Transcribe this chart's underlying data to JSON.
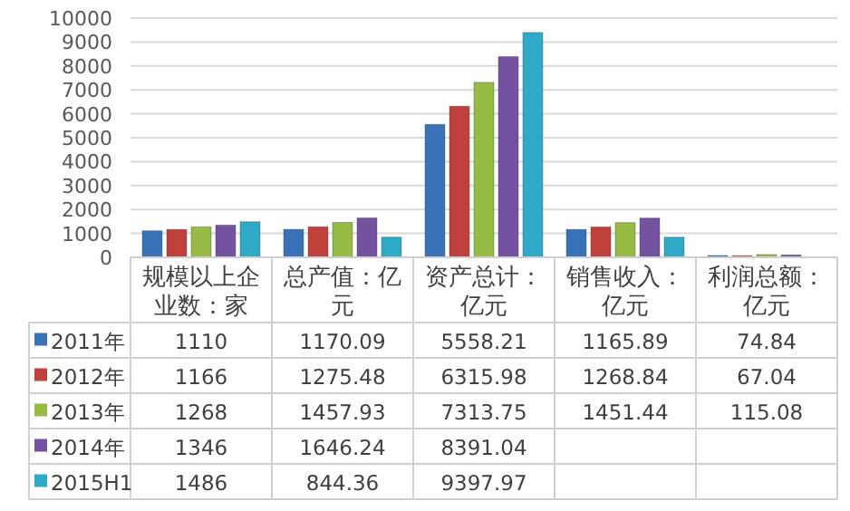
{
  "chart_data": {
    "type": "bar",
    "categories": [
      "规模以上企业数：家",
      "总产值：亿元",
      "资产总计：亿元",
      "销售收入：亿元",
      "利润总额：亿元"
    ],
    "ylim": [
      0,
      10000
    ],
    "yticks": [
      0,
      1000,
      2000,
      3000,
      4000,
      5000,
      6000,
      7000,
      8000,
      9000,
      10000
    ],
    "grid": "y",
    "legend": "bottom left",
    "series": [
      {
        "name": "2011年",
        "color": "#3a72b8",
        "values": [
          1110,
          1170.09,
          5558.21,
          1165.89,
          74.84
        ],
        "value_labels": [
          "1110",
          "1170.09",
          "5558.21",
          "1165.89",
          "74.84"
        ]
      },
      {
        "name": "2012年",
        "color": "#c0403c",
        "values": [
          1166,
          1275.48,
          6315.98,
          1268.84,
          67.04
        ],
        "value_labels": [
          "1166",
          "1275.48",
          "6315.98",
          "1268.84",
          "67.04"
        ]
      },
      {
        "name": "2013年",
        "color": "#98bb45",
        "values": [
          1268,
          1457.93,
          7313.75,
          1451.44,
          115.08
        ],
        "value_labels": [
          "1268",
          "1457.93",
          "7313.75",
          "1451.44",
          "115.08"
        ]
      },
      {
        "name": "2014年",
        "color": "#7452a0",
        "values": [
          1346,
          1646.24,
          8391.04,
          1640,
          100
        ],
        "value_labels": [
          "1346",
          "1646.24",
          "8391.04",
          null,
          null
        ]
      },
      {
        "name": "2015H1",
        "color": "#2fa9c8",
        "values": [
          1486,
          844.36,
          9397.97,
          840,
          null
        ],
        "value_labels": [
          "1486",
          "844.36",
          "9397.97",
          null,
          null
        ]
      }
    ]
  }
}
